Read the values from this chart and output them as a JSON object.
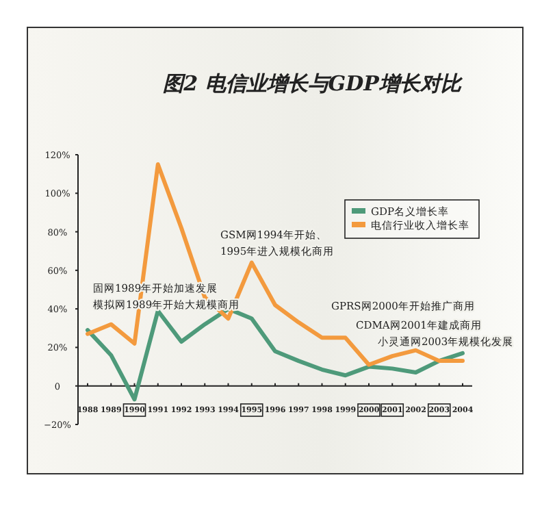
{
  "chart_data": {
    "type": "line",
    "title": "图2 电信业增长与GDP增长对比",
    "categories": [
      "1988",
      "1989",
      "1990",
      "1991",
      "1992",
      "1993",
      "1994",
      "1995",
      "1996",
      "1997",
      "1998",
      "1999",
      "2000",
      "2001",
      "2002",
      "2003",
      "2004"
    ],
    "series": [
      {
        "name": "GDP名义增长率",
        "color": "#4e9a7a",
        "values": [
          29,
          16,
          -7,
          39,
          23,
          32,
          40,
          35,
          18,
          13,
          8.5,
          5.5,
          10,
          9,
          7,
          13,
          17
        ]
      },
      {
        "name": "电信行业收入增长率",
        "color": "#f39a3e",
        "values": [
          27,
          32,
          22,
          115,
          82,
          46,
          35,
          64,
          42,
          33,
          25,
          25,
          11,
          15.5,
          18.5,
          13,
          13
        ]
      }
    ],
    "ylim": [
      -20,
      120
    ],
    "yticks": [
      {
        "value": -20,
        "label": "−20%"
      },
      {
        "value": 0,
        "label": "0"
      },
      {
        "value": 20,
        "label": "20%"
      },
      {
        "value": 40,
        "label": "40%"
      },
      {
        "value": 60,
        "label": "60%"
      },
      {
        "value": 80,
        "label": "80%"
      },
      {
        "value": 100,
        "label": "100%"
      },
      {
        "value": 120,
        "label": "120%"
      }
    ],
    "legend": "top right",
    "marker": "none",
    "line_style": "solid",
    "annotations": [
      "固网1989年开始加速发展",
      "模拟网1989年开始大规模商用",
      "GSM网1994年开始、",
      "1995年进入规模化商用",
      "GPRS网2000年开始推广商用",
      "CDMA网2001年建成商用",
      "小灵通网2003年规模化发展"
    ]
  }
}
